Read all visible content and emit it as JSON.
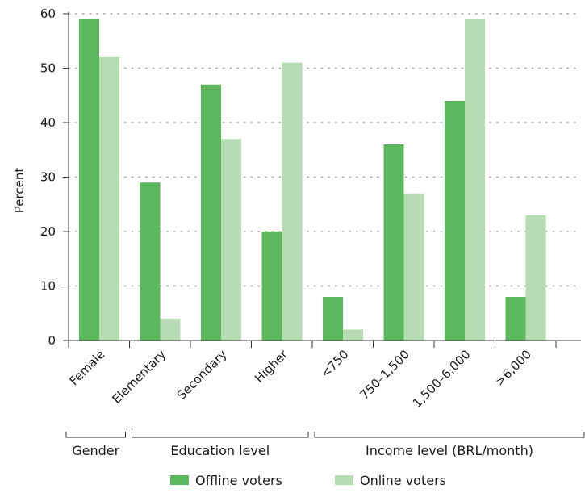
{
  "chart_data": {
    "type": "bar",
    "ylabel": "Percent",
    "ylim": [
      0,
      60
    ],
    "yticks": [
      "0",
      "10",
      "20",
      "30",
      "40",
      "50",
      "60"
    ],
    "grid": "horizontal dotted",
    "legend_position": "bottom",
    "categories": [
      "Female",
      "Elementary",
      "Secondary",
      "Higher",
      "<750",
      "750–1,500",
      "1,500–6,000",
      ">6,000"
    ],
    "groups": [
      {
        "label": "Gender",
        "categories": [
          "Female"
        ]
      },
      {
        "label": "Education level",
        "categories": [
          "Elementary",
          "Secondary",
          "Higher"
        ]
      },
      {
        "label": "Income level (BRL/month)",
        "categories": [
          "<750",
          "750–1,500",
          "1,500–6,000",
          ">6,000"
        ]
      }
    ],
    "series": [
      {
        "name": "Offline voters",
        "color": "#5cb85c",
        "values": [
          59,
          29,
          47,
          20,
          8,
          36,
          44,
          8
        ]
      },
      {
        "name": "Online voters",
        "color": "#b7dbb3",
        "values": [
          52,
          4,
          37,
          51,
          2,
          27,
          59,
          23
        ]
      }
    ]
  }
}
